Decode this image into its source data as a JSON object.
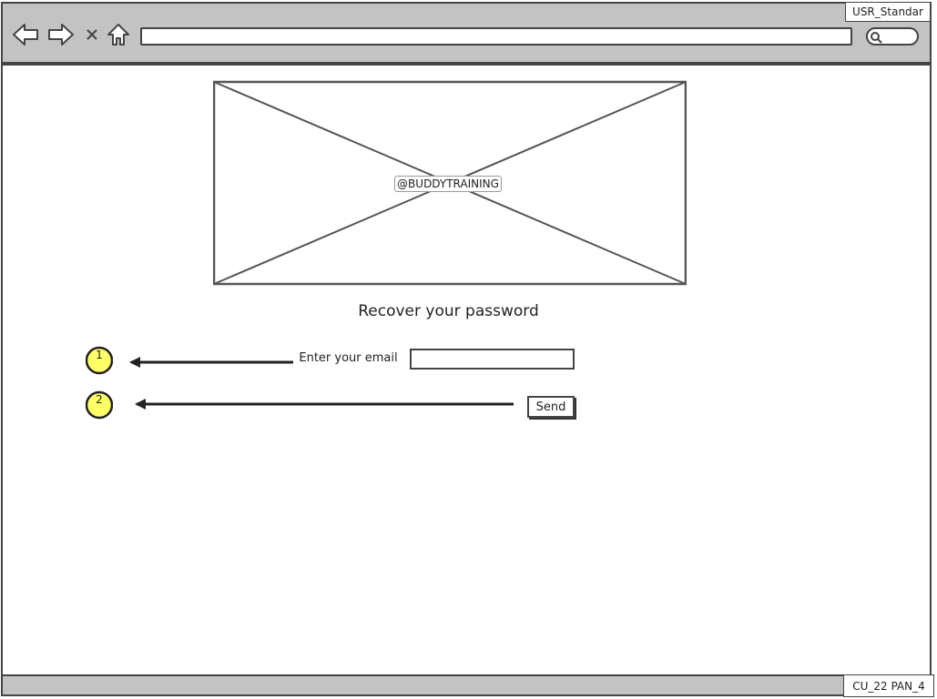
{
  "browser": {
    "user_tag": "USR_Standar",
    "screen_id": "CU_22 PAN_4",
    "icons": [
      "back-arrow-icon",
      "forward-arrow-icon",
      "close-icon",
      "home-icon",
      "search-icon"
    ]
  },
  "logo": {
    "label": "@BUDDYTRAINING"
  },
  "form": {
    "title": "Recover your password",
    "email_label": "Enter your email",
    "email_value": "",
    "send_label": "Send"
  },
  "annotations": [
    {
      "number": "1",
      "color": "#ffff66"
    },
    {
      "number": "2",
      "color": "#ffff66"
    }
  ]
}
